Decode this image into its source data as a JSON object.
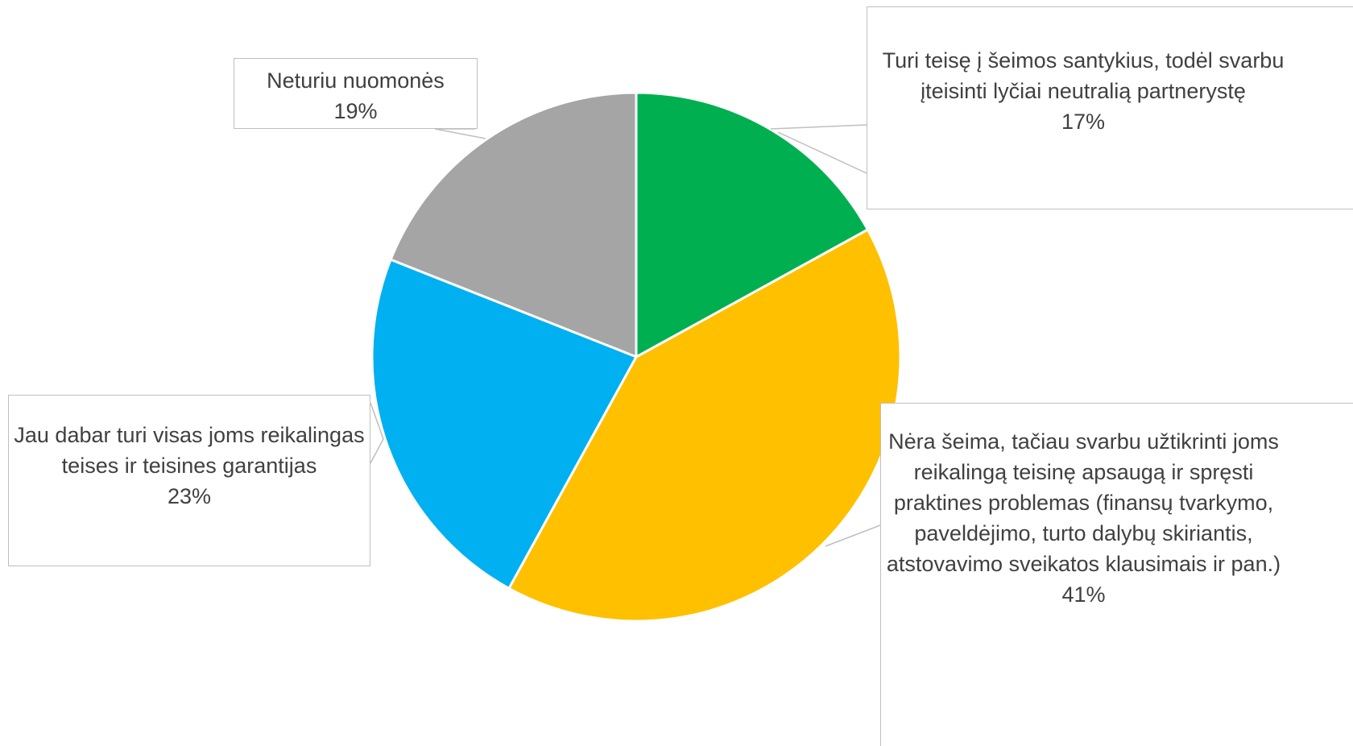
{
  "chart_data": {
    "type": "pie",
    "categories": [
      "Turi teisę į šeimos santykius, todėl svarbu įteisinti lyčiai neutralią partnerystę",
      "Nėra šeima, tačiau svarbu užtikrinti joms reikalingą teisinę apsaugą ir spręsti praktines problemas (finansų tvarkymo, paveldėjimo, turto dalybų skiriantis, atstovavimo sveikatos klausimais ir pan.)",
      "Jau dabar turi visas joms reikalingas teises ir teisines garantijas",
      "Neturiu nuomonės"
    ],
    "values": [
      17,
      41,
      23,
      19
    ],
    "value_labels": [
      "17%",
      "41%",
      "23%",
      "19%"
    ],
    "colors": [
      "#00b050",
      "#ffc000",
      "#00b0f0",
      "#a5a5a5"
    ]
  }
}
